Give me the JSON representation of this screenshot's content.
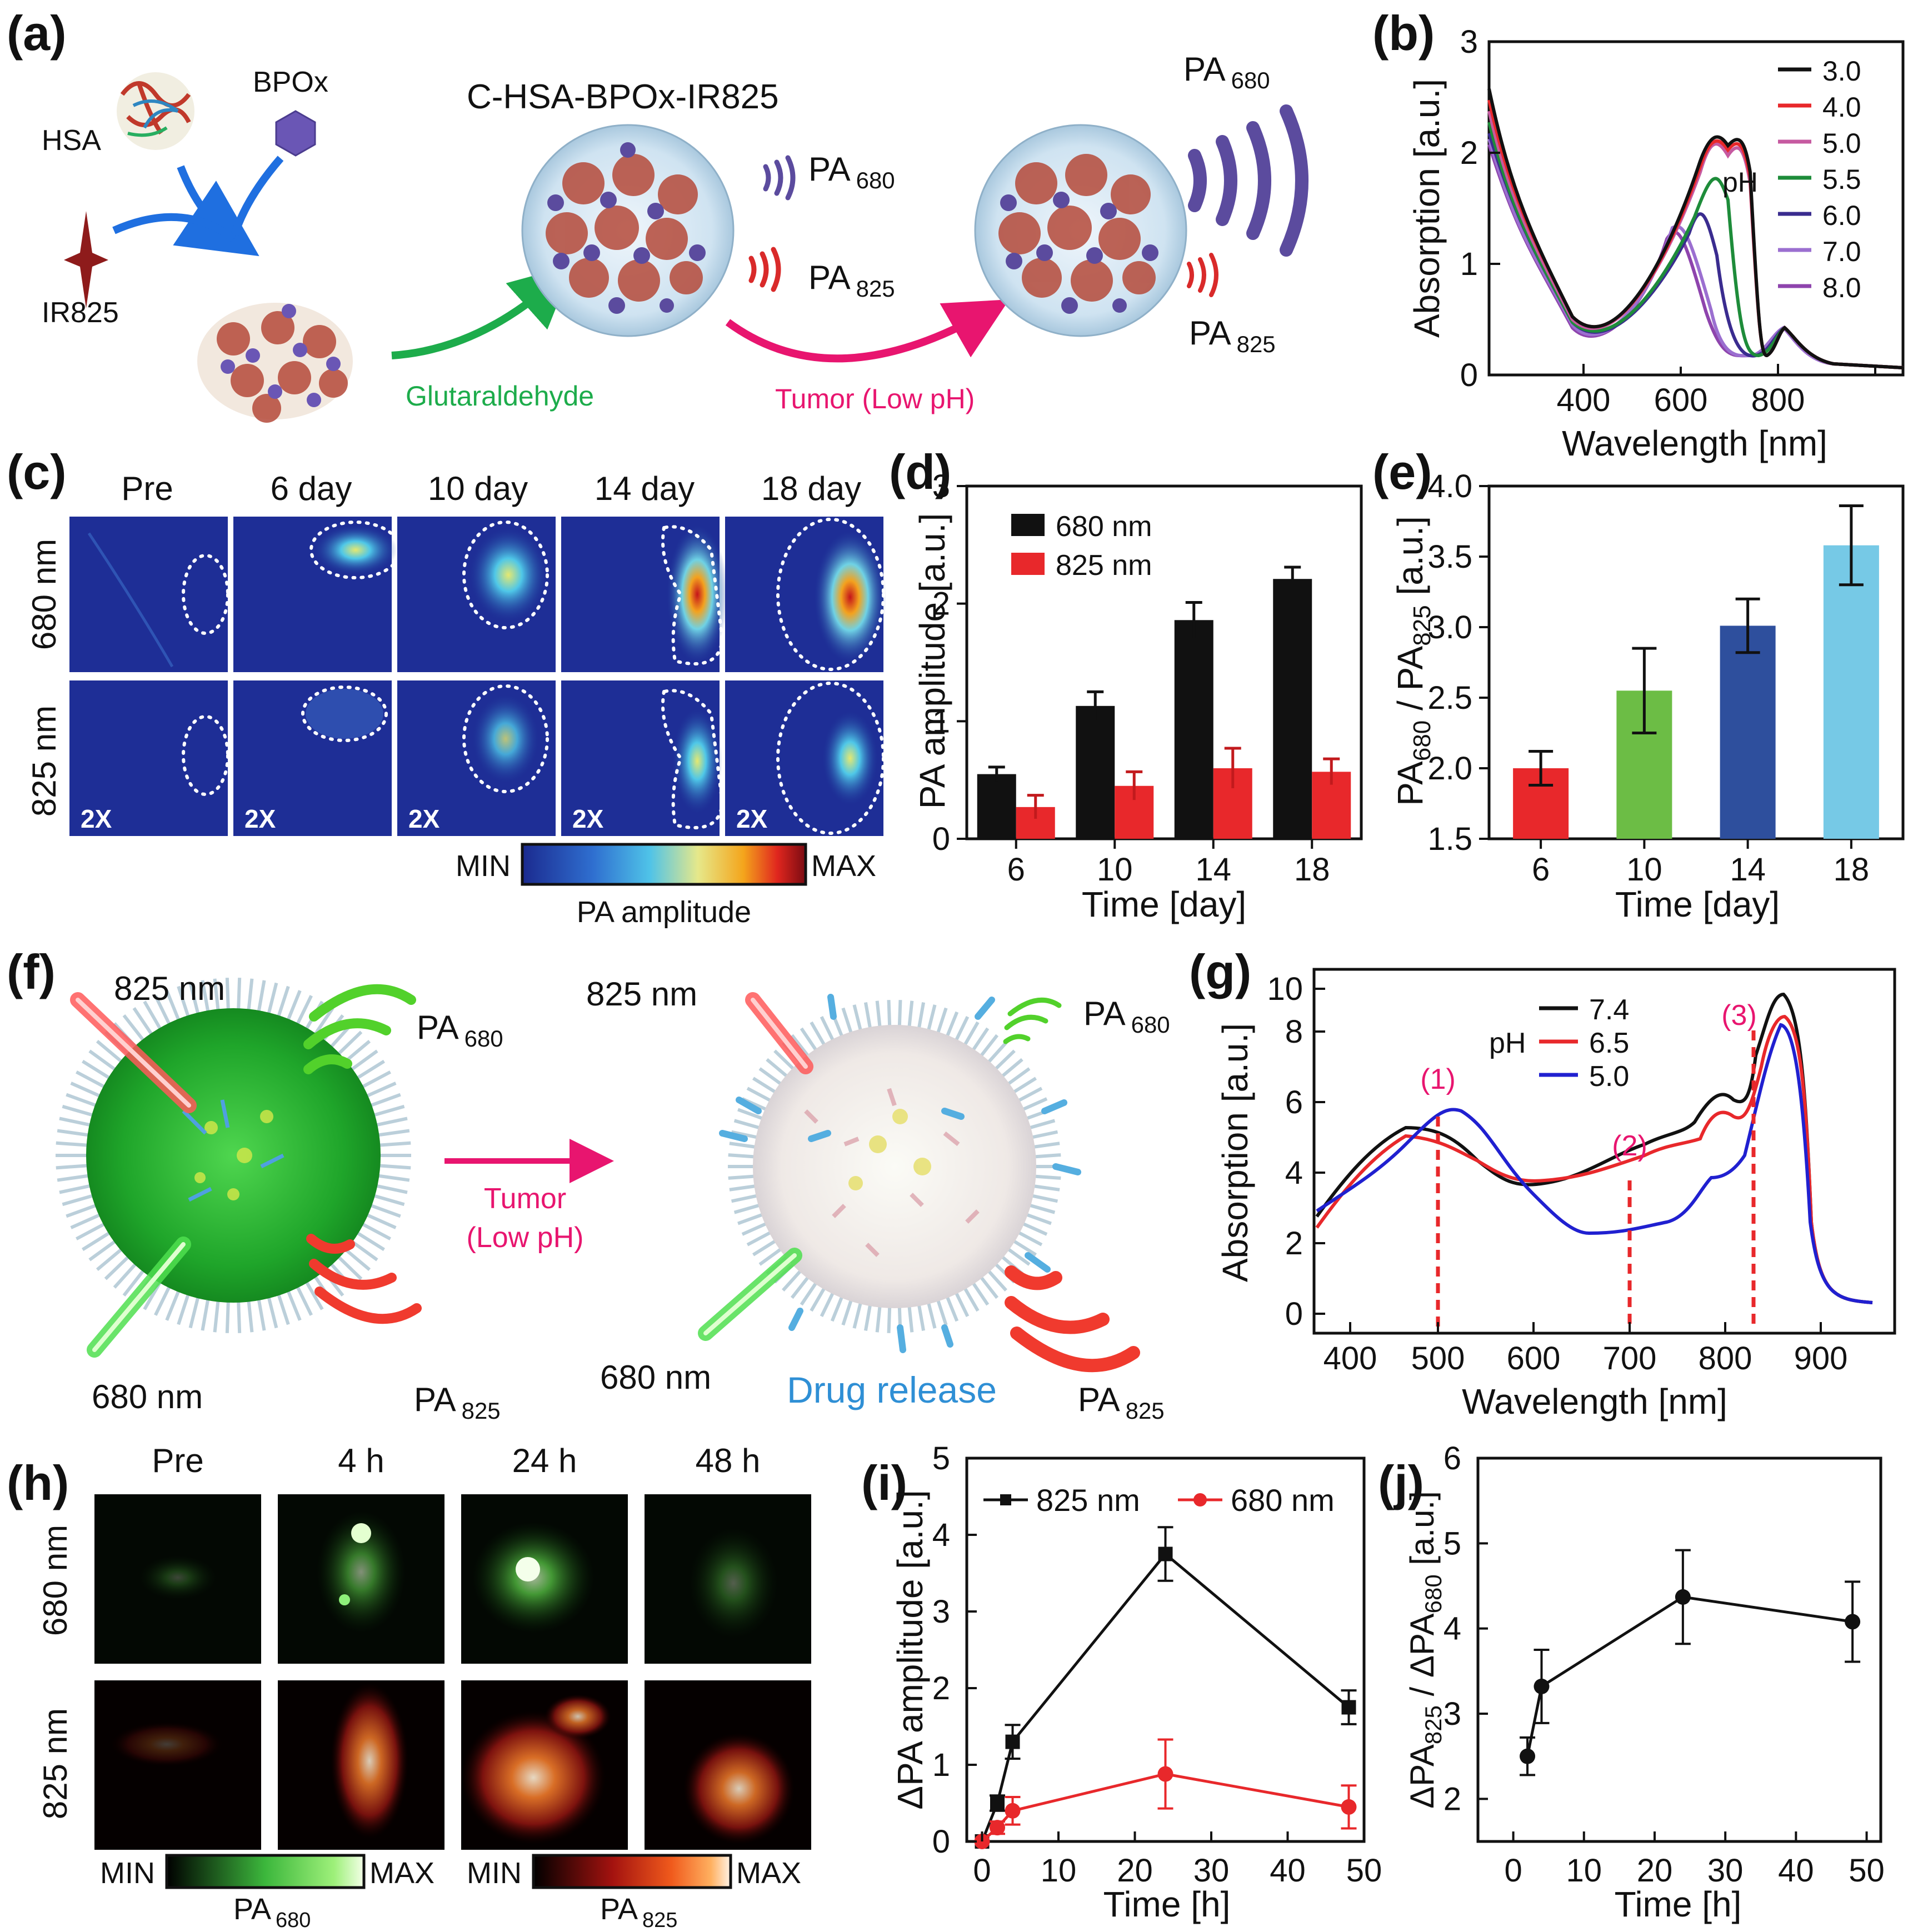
{
  "figure": {
    "panel_labels": [
      "(a)",
      "(b)",
      "(c)",
      "(d)",
      "(e)",
      "(f)",
      "(g)",
      "(h)",
      "(i)",
      "(j)"
    ],
    "colors": {
      "black": "#111111",
      "red": "#e8282b",
      "green": "#6cbd45",
      "navy": "#2e4f9d",
      "cyan": "#76c9e6",
      "pink": "#e8156f",
      "arrow_green": "#1dac4b",
      "blue_arrow": "#1f6fe0",
      "purple": "#5b4b9e"
    }
  },
  "panel_a": {
    "hsa": "HSA",
    "bpox": "BPOx",
    "ir825": "IR825",
    "title": "C-HSA-BPOx-IR825",
    "pa_label": "PA",
    "sub680": "680",
    "sub825": "825",
    "glutaraldehyde": "Glutaraldehyde",
    "tumor": "Tumor (Low pH)"
  },
  "panel_b": {
    "xlabel": "Wavelength [nm]",
    "ylabel": "Absorption [a.u.]",
    "xticks": [
      "400",
      "600",
      "800"
    ],
    "yticks": [
      "0",
      "1",
      "2",
      "3"
    ],
    "legend_title": "pH",
    "legend": [
      "3.0",
      "4.0",
      "5.0",
      "5.5",
      "6.0",
      "7.0",
      "8.0"
    ]
  },
  "panel_c": {
    "columns": [
      "Pre",
      "6 day",
      "10 day",
      "14 day",
      "18 day"
    ],
    "rows": [
      "680 nm",
      "825 nm"
    ],
    "magnification": "2X",
    "colorbar_min": "MIN",
    "colorbar_max": "MAX",
    "colorbar_label": "PA amplitude"
  },
  "panel_h": {
    "columns": [
      "Pre",
      "4 h",
      "24 h",
      "48 h"
    ],
    "rows": [
      "680 nm",
      "825 nm"
    ],
    "colorbar_min": "MIN",
    "colorbar_max": "MAX",
    "pa": "PA",
    "sub680": "680",
    "sub825": "825"
  },
  "panel_f": {
    "laser825": "825 nm",
    "laser680": "680 nm",
    "pa": "PA",
    "sub680": "680",
    "sub825": "825",
    "tumor1": "Tumor",
    "tumor2": "(Low pH)",
    "drug_release": "Drug release"
  },
  "panel_g": {
    "xlabel": "Wavelength [nm]",
    "ylabel": "Absorption [a.u.]",
    "xticks": [
      "400",
      "500",
      "600",
      "700",
      "800",
      "900"
    ],
    "yticks": [
      "0",
      "2",
      "4",
      "6",
      "8",
      "10"
    ],
    "legend_title": "pH",
    "legend": [
      "7.4",
      "6.5",
      "5.0"
    ],
    "markers": [
      "(1)",
      "(2)",
      "(3)"
    ]
  },
  "chart_data": [
    {
      "panel": "d",
      "type": "bar",
      "categories": [
        "6",
        "10",
        "14",
        "18"
      ],
      "series": [
        {
          "name": "680 nm",
          "values": [
            0.55,
            1.13,
            1.86,
            2.21
          ],
          "errors": [
            0.06,
            0.12,
            0.15,
            0.1
          ]
        },
        {
          "name": "825 nm",
          "values": [
            0.27,
            0.45,
            0.6,
            0.57
          ],
          "errors": [
            0.1,
            0.12,
            0.17,
            0.11
          ]
        }
      ],
      "xlabel": "Time [day]",
      "ylabel": "PA amplitude [a.u.]",
      "ylim": [
        0,
        3
      ],
      "yticks": [
        "0",
        "1",
        "2",
        "3"
      ],
      "legend": "top-left"
    },
    {
      "panel": "e",
      "type": "bar",
      "categories": [
        "6",
        "10",
        "14",
        "18"
      ],
      "values": [
        2.0,
        2.55,
        3.01,
        3.58
      ],
      "errors": [
        0.12,
        0.3,
        0.19,
        0.28
      ],
      "xlabel": "Time [day]",
      "ylabel_prefix": "PA",
      "ylabel_sub1": "680",
      "ylabel_mid": " / PA",
      "ylabel_sub2": "825",
      "ylabel_suffix": " [a.u.]",
      "ylim": [
        1.5,
        4.0
      ],
      "yticks": [
        "1.5",
        "2.0",
        "2.5",
        "3.0",
        "3.5",
        "4.0"
      ]
    },
    {
      "panel": "i",
      "type": "line",
      "series": [
        {
          "name": "825 nm",
          "x": [
            0,
            2,
            4,
            24,
            48
          ],
          "y": [
            0.0,
            0.5,
            1.3,
            3.75,
            1.75
          ],
          "errors": [
            0.0,
            0.1,
            0.22,
            0.35,
            0.22
          ]
        },
        {
          "name": "680 nm",
          "x": [
            0,
            2,
            4,
            24,
            48
          ],
          "y": [
            0.0,
            0.18,
            0.4,
            0.88,
            0.45
          ],
          "errors": [
            0.0,
            0.08,
            0.18,
            0.45,
            0.28
          ]
        }
      ],
      "xlabel": "Time [h]",
      "ylabel": "ΔPA amplitude [a.u.]",
      "xlim": [
        -2,
        50
      ],
      "ylim": [
        0,
        5
      ],
      "xticks": [
        "0",
        "10",
        "20",
        "30",
        "40",
        "50"
      ],
      "yticks": [
        "0",
        "1",
        "2",
        "3",
        "4",
        "5"
      ],
      "legend": "top"
    },
    {
      "panel": "j",
      "type": "line",
      "series": [
        {
          "name": "ratio",
          "x": [
            2,
            4,
            24,
            48
          ],
          "y": [
            2.5,
            3.32,
            4.37,
            4.08
          ],
          "errors": [
            0.22,
            0.43,
            0.55,
            0.47
          ]
        }
      ],
      "xlabel": "Time [h]",
      "ylabel_prefix": "ΔPA",
      "ylabel_sub1": "825",
      "ylabel_mid": " / ΔPA",
      "ylabel_sub2": "680",
      "ylabel_suffix": " [a.u.]",
      "xlim": [
        -5,
        52
      ],
      "ylim": [
        1.5,
        6
      ],
      "xticks": [
        "0",
        "10",
        "20",
        "30",
        "40",
        "50"
      ],
      "yticks": [
        "2",
        "3",
        "4",
        "5",
        "6"
      ]
    }
  ]
}
